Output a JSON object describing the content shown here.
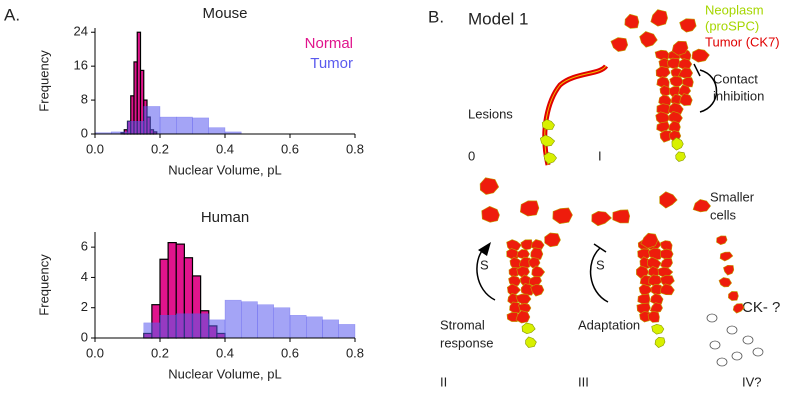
{
  "chart_data": [
    {
      "type": "histogram",
      "title": "Mouse",
      "xlabel": "Nuclear Volume, pL",
      "ylabel": "Frequency",
      "xlim": [
        0,
        0.8
      ],
      "xticks": [
        {
          "value": 0,
          "label": "0.0"
        },
        0.2,
        0.4,
        0.6,
        0.8
      ],
      "ylim": [
        0,
        25
      ],
      "yticks": [
        0,
        8,
        16,
        24
      ],
      "legend": "upper right",
      "series": [
        {
          "name": "Normal",
          "color": "#e0148c",
          "bins": [
            0.08,
            0.09,
            0.1,
            0.11,
            0.12,
            0.13,
            0.14,
            0.15,
            0.16,
            0.17,
            0.18,
            0.19
          ],
          "values": [
            0.3,
            1,
            3,
            9,
            17,
            24,
            15,
            8,
            4,
            1,
            0.5
          ]
        },
        {
          "name": "Tumor",
          "color": "#5a5aee",
          "bins": [
            0.0,
            0.05,
            0.1,
            0.15,
            0.2,
            0.25,
            0.3,
            0.35,
            0.4,
            0.45
          ],
          "values": [
            0.3,
            0.5,
            3,
            6.5,
            4,
            4,
            3.8,
            1.5,
            0.5
          ]
        }
      ]
    },
    {
      "type": "histogram",
      "title": "Human",
      "xlabel": "Nuclear Volume, pL",
      "ylabel": "Frequency",
      "xlim": [
        0,
        0.8
      ],
      "xticks": [
        {
          "value": 0,
          "label": "0.0"
        },
        0.2,
        0.4,
        0.6,
        0.8
      ],
      "ylim": [
        0,
        7
      ],
      "yticks": [
        0,
        2,
        4,
        6
      ],
      "series": [
        {
          "color": "#e0148c",
          "bins": [
            0.15,
            0.175,
            0.2,
            0.225,
            0.25,
            0.275,
            0.3,
            0.325,
            0.35,
            0.375,
            0.4
          ],
          "values": [
            0.3,
            2.2,
            5.2,
            6.3,
            6.2,
            5.3,
            4.1,
            1.8,
            0.8,
            0.3
          ]
        },
        {
          "color": "#5a5aee",
          "bins": [
            0.15,
            0.2,
            0.25,
            0.3,
            0.35,
            0.4,
            0.45,
            0.5,
            0.55,
            0.6,
            0.65,
            0.7,
            0.75,
            0.8
          ],
          "values": [
            1.0,
            1.5,
            1.6,
            1.6,
            1.2,
            2.5,
            2.4,
            2.2,
            2.0,
            1.5,
            1.4,
            1.2,
            0.9
          ]
        }
      ]
    }
  ],
  "figure": {
    "panel_a": "A.",
    "panel_b": {
      "label": "B.",
      "title": "Model 1",
      "legend": {
        "neoplasm": [
          "Neoplasm",
          "(proSPC)"
        ],
        "tumor": "Tumor (CK7)"
      },
      "stages": {
        "lesions": "Lesions",
        "stage0": "0",
        "stage1": "I",
        "contact": [
          "Contact",
          "inhibition"
        ],
        "s1": "S",
        "stromal": [
          "Stromal",
          "response"
        ],
        "stage2": "II",
        "s2": "S",
        "adaptation": "Adaptation",
        "stage3": "III",
        "smaller": [
          "Smaller",
          "cells"
        ],
        "ck": "CK- ?",
        "stage4": "IV?"
      }
    }
  }
}
